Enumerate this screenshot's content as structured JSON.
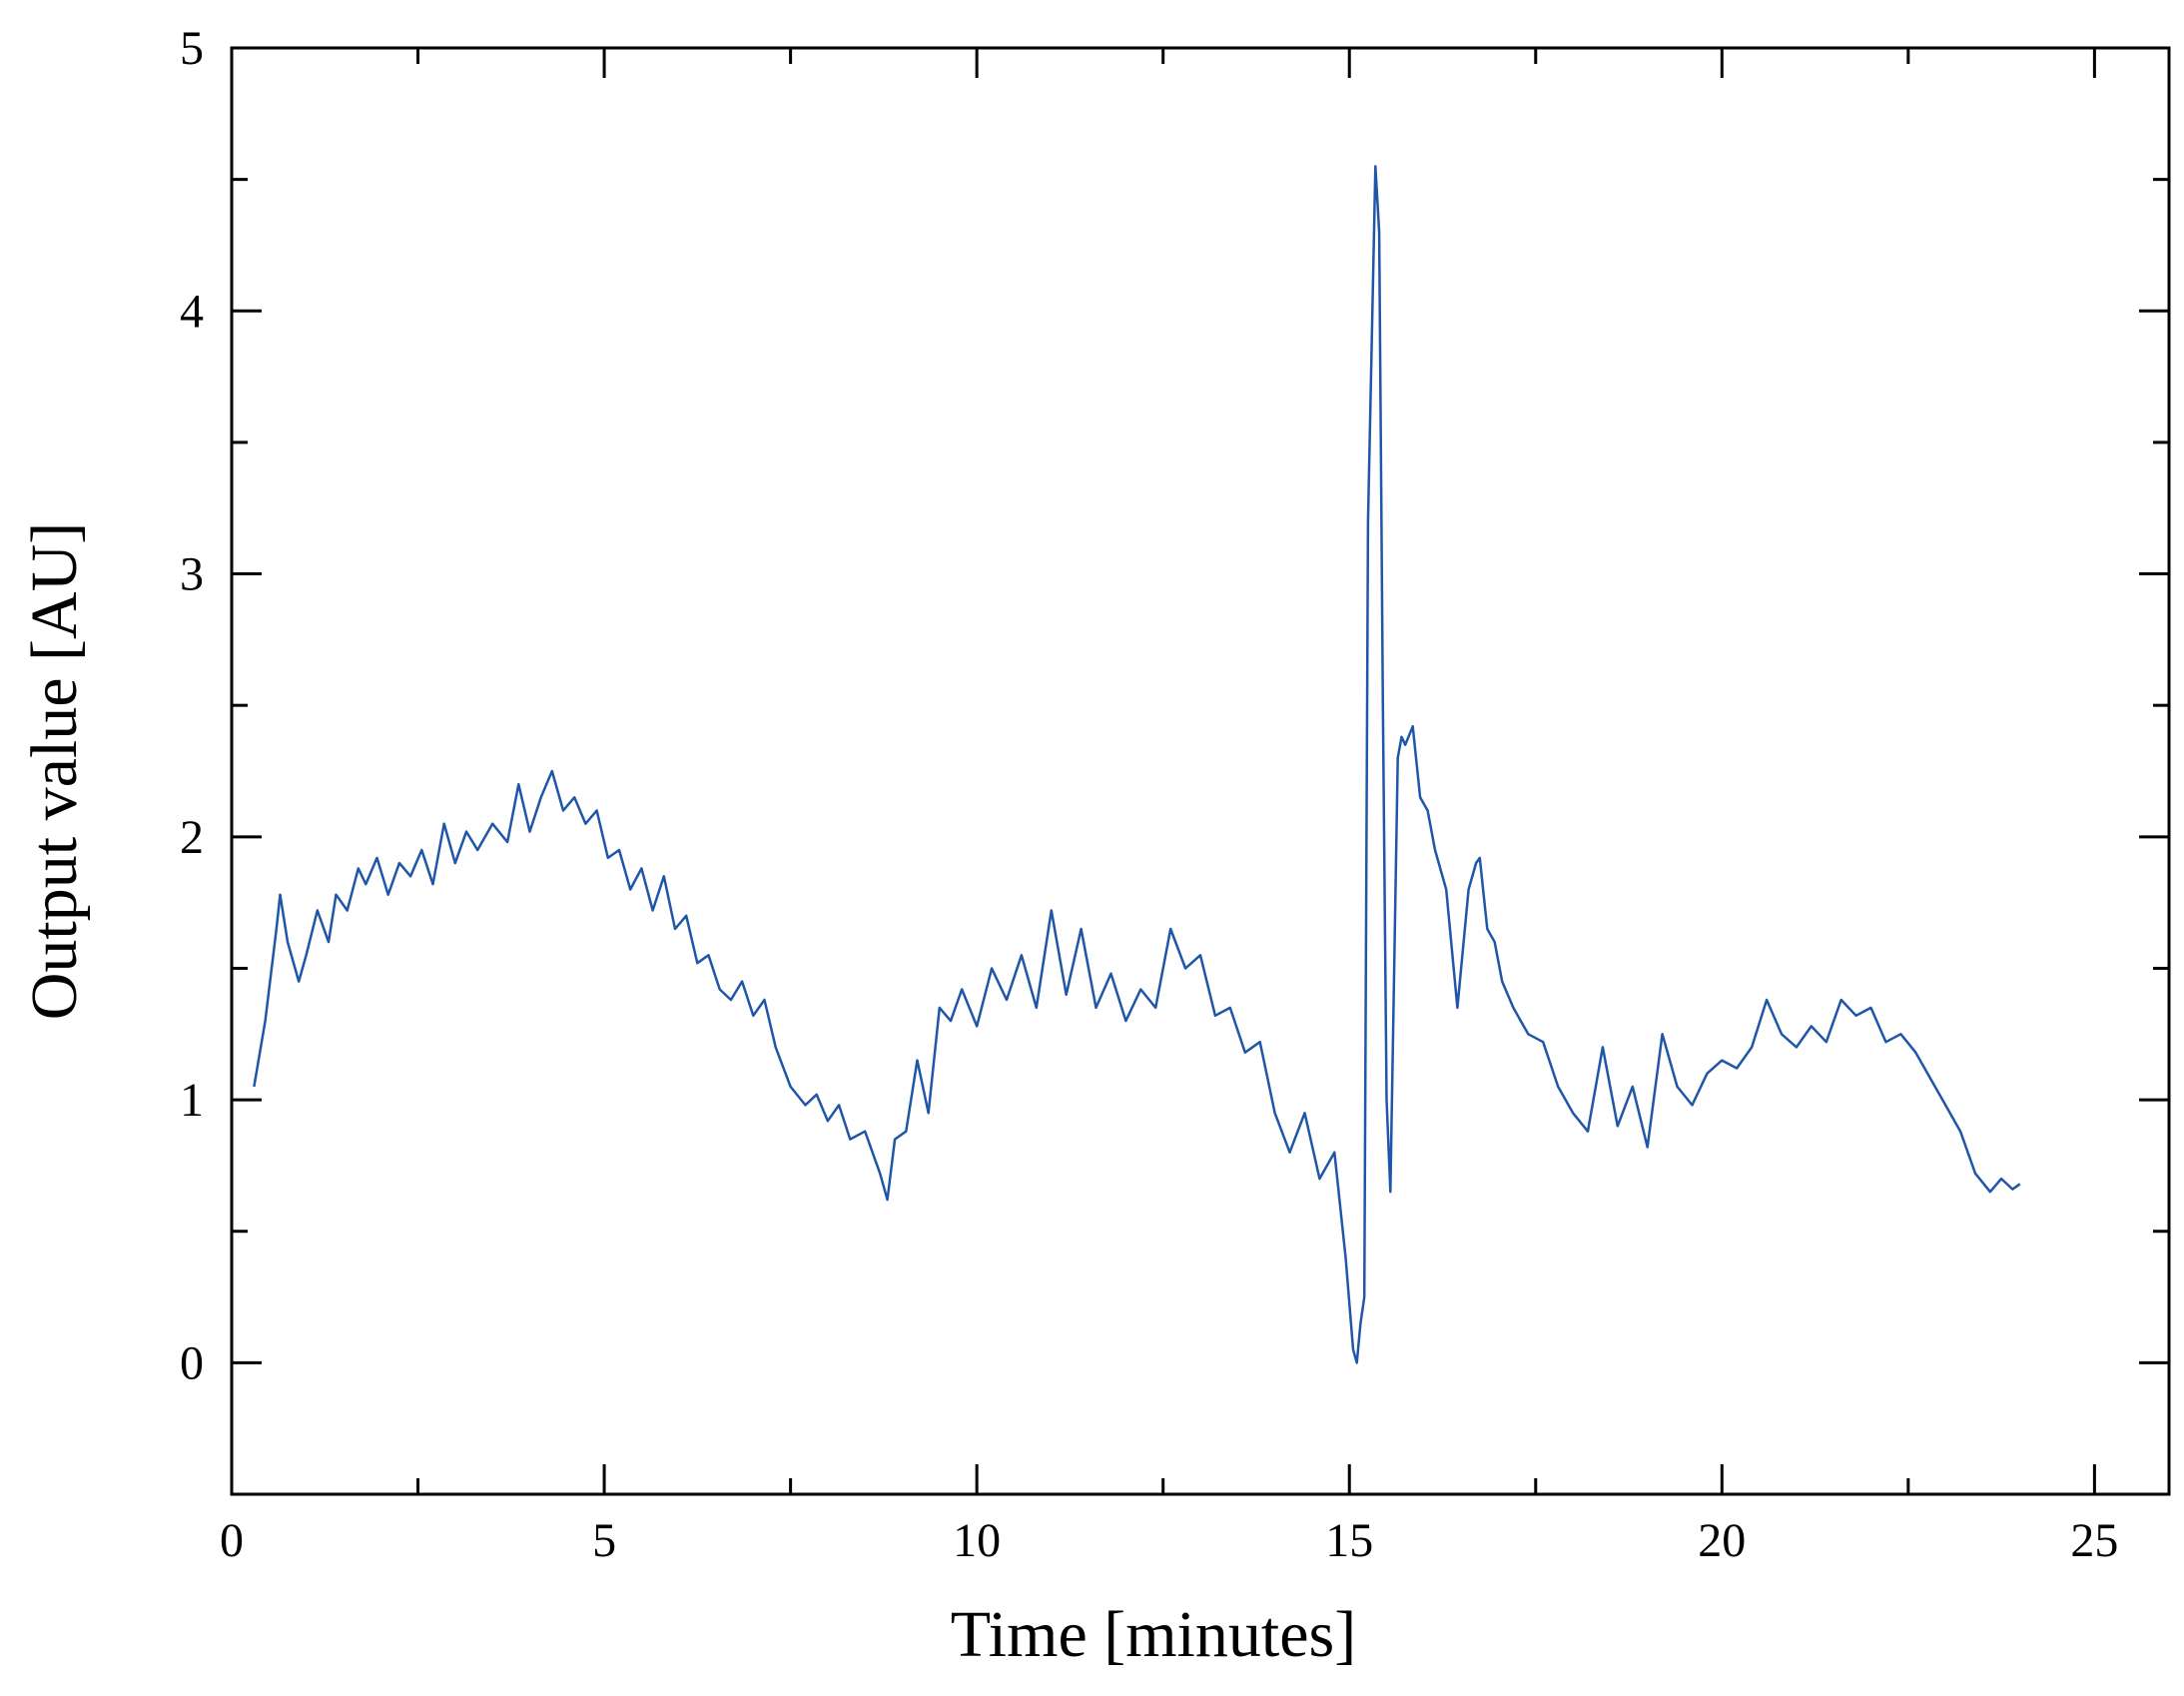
{
  "chart_data": {
    "type": "line",
    "title": "",
    "xlabel": "Time [minutes]",
    "ylabel": "Output value [AU]",
    "xlim": [
      0,
      26
    ],
    "ylim": [
      -0.5,
      5
    ],
    "x_ticks": [
      0,
      5,
      10,
      15,
      20,
      25
    ],
    "x_tick_labels": [
      "0",
      "5",
      "10",
      "15",
      "20",
      "25"
    ],
    "x_minor_ticks": [
      2.5,
      7.5,
      12.5,
      17.5,
      22.5
    ],
    "y_ticks": [
      0,
      1,
      2,
      3,
      4,
      5
    ],
    "y_tick_labels": [
      "0",
      "1",
      "2",
      "3",
      "4",
      "5"
    ],
    "y_minor_ticks": [
      0.5,
      1.5,
      2.5,
      3.5,
      4.5
    ],
    "grid": false,
    "legend": "none",
    "line_color": "#1f56a8",
    "series": [
      {
        "x": [
          0.3,
          0.45,
          0.6,
          0.65,
          0.75,
          0.9,
          1.0,
          1.15,
          1.3,
          1.4,
          1.55,
          1.7,
          1.8,
          1.95,
          2.1,
          2.25,
          2.4,
          2.55,
          2.7,
          2.85,
          3.0,
          3.15,
          3.3,
          3.5,
          3.7,
          3.85,
          4.0,
          4.15,
          4.3,
          4.45,
          4.6,
          4.75,
          4.9,
          5.05,
          5.2,
          5.35,
          5.5,
          5.65,
          5.8,
          5.95,
          6.1,
          6.25,
          6.4,
          6.55,
          6.7,
          6.85,
          7.0,
          7.15,
          7.3,
          7.5,
          7.7,
          7.85,
          8.0,
          8.15,
          8.3,
          8.5,
          8.7,
          8.8,
          8.9,
          9.05,
          9.2,
          9.35,
          9.5,
          9.65,
          9.8,
          10.0,
          10.2,
          10.4,
          10.6,
          10.8,
          11.0,
          11.2,
          11.4,
          11.6,
          11.8,
          12.0,
          12.2,
          12.4,
          12.6,
          12.8,
          13.0,
          13.2,
          13.4,
          13.6,
          13.8,
          14.0,
          14.2,
          14.4,
          14.6,
          14.8,
          14.95,
          15.05,
          15.1,
          15.15,
          15.2,
          15.25,
          15.35,
          15.4,
          15.45,
          15.5,
          15.55,
          15.65,
          15.7,
          15.75,
          15.85,
          15.95,
          16.05,
          16.15,
          16.3,
          16.45,
          16.6,
          16.7,
          16.75,
          16.85,
          16.95,
          17.05,
          17.2,
          17.4,
          17.6,
          17.8,
          18.0,
          18.2,
          18.4,
          18.6,
          18.8,
          19.0,
          19.2,
          19.4,
          19.6,
          19.8,
          20.0,
          20.2,
          20.4,
          20.6,
          20.8,
          21.0,
          21.2,
          21.4,
          21.6,
          21.8,
          22.0,
          22.2,
          22.4,
          22.6,
          22.8,
          23.0,
          23.2,
          23.4,
          23.6,
          23.75,
          23.9,
          24.0
        ],
        "values": [
          1.05,
          1.3,
          1.65,
          1.78,
          1.6,
          1.45,
          1.55,
          1.72,
          1.6,
          1.78,
          1.72,
          1.88,
          1.82,
          1.92,
          1.78,
          1.9,
          1.85,
          1.95,
          1.82,
          2.05,
          1.9,
          2.02,
          1.95,
          2.05,
          1.98,
          2.2,
          2.02,
          2.15,
          2.25,
          2.1,
          2.15,
          2.05,
          2.1,
          1.92,
          1.95,
          1.8,
          1.88,
          1.72,
          1.85,
          1.65,
          1.7,
          1.52,
          1.55,
          1.42,
          1.38,
          1.45,
          1.32,
          1.38,
          1.2,
          1.05,
          0.98,
          1.02,
          0.92,
          0.98,
          0.85,
          0.88,
          0.72,
          0.62,
          0.85,
          0.88,
          1.15,
          0.95,
          1.35,
          1.3,
          1.42,
          1.28,
          1.5,
          1.38,
          1.55,
          1.35,
          1.72,
          1.4,
          1.65,
          1.35,
          1.48,
          1.3,
          1.42,
          1.35,
          1.65,
          1.5,
          1.55,
          1.32,
          1.35,
          1.18,
          1.22,
          0.95,
          0.8,
          0.95,
          0.7,
          0.8,
          0.4,
          0.05,
          0.0,
          0.15,
          0.25,
          3.2,
          4.55,
          4.3,
          2.5,
          1.0,
          0.65,
          2.3,
          2.38,
          2.35,
          2.42,
          2.15,
          2.1,
          1.95,
          1.8,
          1.35,
          1.8,
          1.9,
          1.92,
          1.65,
          1.6,
          1.45,
          1.35,
          1.25,
          1.22,
          1.05,
          0.95,
          0.88,
          1.2,
          0.9,
          1.05,
          0.82,
          1.25,
          1.05,
          0.98,
          1.1,
          1.15,
          1.12,
          1.2,
          1.38,
          1.25,
          1.2,
          1.28,
          1.22,
          1.38,
          1.32,
          1.35,
          1.22,
          1.25,
          1.18,
          1.08,
          0.98,
          0.88,
          0.72,
          0.65,
          0.7,
          0.66,
          0.68
        ]
      }
    ]
  }
}
